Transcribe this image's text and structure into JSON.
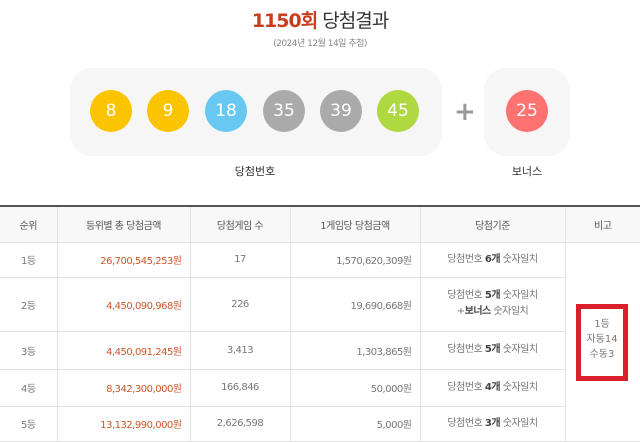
{
  "header": {
    "round": "1150회",
    "title": "당첨결과",
    "date": "(2024년 12월 14일 추첨)"
  },
  "numbers": {
    "label": "당첨번호",
    "balls": [
      {
        "value": "8",
        "color": "#fbc400"
      },
      {
        "value": "9",
        "color": "#fbc400"
      },
      {
        "value": "18",
        "color": "#69c8f2"
      },
      {
        "value": "35",
        "color": "#aaaaaa"
      },
      {
        "value": "39",
        "color": "#aaaaaa"
      },
      {
        "value": "45",
        "color": "#b0d840"
      }
    ],
    "plus": "+",
    "bonus_label": "보너스",
    "bonus": {
      "value": "25",
      "color": "#ff7272"
    }
  },
  "table": {
    "headers": [
      "순위",
      "등위별 총 당첨금액",
      "당첨게임 수",
      "1게임당 당첨금액",
      "당첨기준",
      "비고"
    ],
    "rows": [
      {
        "rank": "1등",
        "total": "26,700,545,253원",
        "count": "17",
        "per": "1,570,620,309원",
        "c1": "당첨번호 ",
        "cb": "6개",
        "c2": " 숫자일치"
      },
      {
        "rank": "2등",
        "total": "4,450,090,968원",
        "count": "226",
        "per": "19,690,668원",
        "c1": "당첨번호 ",
        "cb": "5개",
        "c2": " 숫자일치",
        "c3": "+",
        "c3b": "보너스",
        "c4": " 숫자일치"
      },
      {
        "rank": "3등",
        "total": "4,450,091,245원",
        "count": "3,413",
        "per": "1,303,865원",
        "c1": "당첨번호 ",
        "cb": "5개",
        "c2": " 숫자일치"
      },
      {
        "rank": "4등",
        "total": "8,342,300,000원",
        "count": "166,846",
        "per": "50,000원",
        "c1": "당첨번호 ",
        "cb": "4개",
        "c2": " 숫자일치"
      },
      {
        "rank": "5등",
        "total": "13,132,990,000원",
        "count": "2,626,598",
        "per": "5,000원",
        "c1": "당첨번호 ",
        "cb": "3개",
        "c2": " 숫자일치"
      }
    ],
    "note": {
      "line1": "1등",
      "line2": "자동14",
      "line3": "수동3",
      "highlight": "#d8202a"
    }
  }
}
